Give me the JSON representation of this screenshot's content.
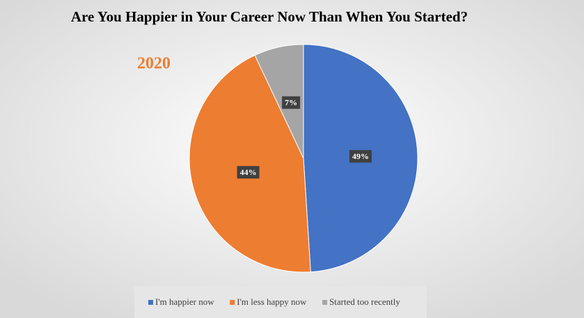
{
  "chart_data": {
    "type": "pie",
    "title": "Are You Happier in Your Career Now Than When You Started?",
    "subtitle": "2020",
    "categories": [
      "I'm happier now",
      "I'm less happy now",
      "Started too recently"
    ],
    "values": [
      49,
      44,
      7
    ],
    "value_labels": [
      "49%",
      "44%",
      "7%"
    ],
    "colors": [
      "#4472c4",
      "#ed7d31",
      "#a5a5a5"
    ],
    "legend": "bottom"
  }
}
